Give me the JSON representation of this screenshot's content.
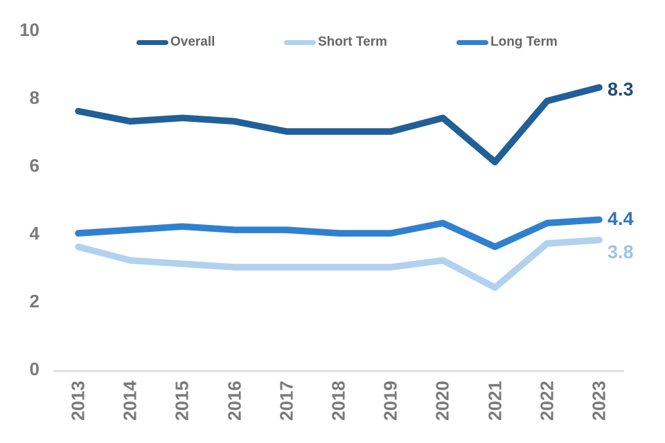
{
  "chart_data": {
    "type": "line",
    "title": "",
    "categories": [
      "2013",
      "2014",
      "2015",
      "2016",
      "2017",
      "2018",
      "2019",
      "2020",
      "2021",
      "2022",
      "2023"
    ],
    "series": [
      {
        "name": "Overall",
        "color": "#215F99",
        "label_color": "#1F4E79",
        "end_label": "8.3",
        "values": [
          7.6,
          7.3,
          7.4,
          7.3,
          7.0,
          7.0,
          7.0,
          7.4,
          6.1,
          7.9,
          8.3
        ]
      },
      {
        "name": "Short Term",
        "color": "#B1D1EF",
        "label_color": "#9DC3E6",
        "end_label": "3.8",
        "values": [
          3.6,
          3.2,
          3.1,
          3.0,
          3.0,
          3.0,
          3.0,
          3.2,
          2.4,
          3.7,
          3.8
        ]
      },
      {
        "name": "Long Term",
        "color": "#2F80D0",
        "label_color": "#2E75B6",
        "end_label": "4.4",
        "values": [
          4.0,
          4.1,
          4.2,
          4.1,
          4.1,
          4.0,
          4.0,
          4.3,
          3.6,
          4.3,
          4.4
        ]
      }
    ],
    "xlabel": "",
    "ylabel": "",
    "ylim": [
      0,
      10
    ],
    "yticks": [
      0,
      2,
      4,
      6,
      8,
      10
    ],
    "grid": false,
    "legend_position": "top",
    "axis_line_color": "#D9D9D9",
    "tick_text_color": "#7A7A7A",
    "legend_text_color": "#666666",
    "background": "#FFFFFF"
  }
}
